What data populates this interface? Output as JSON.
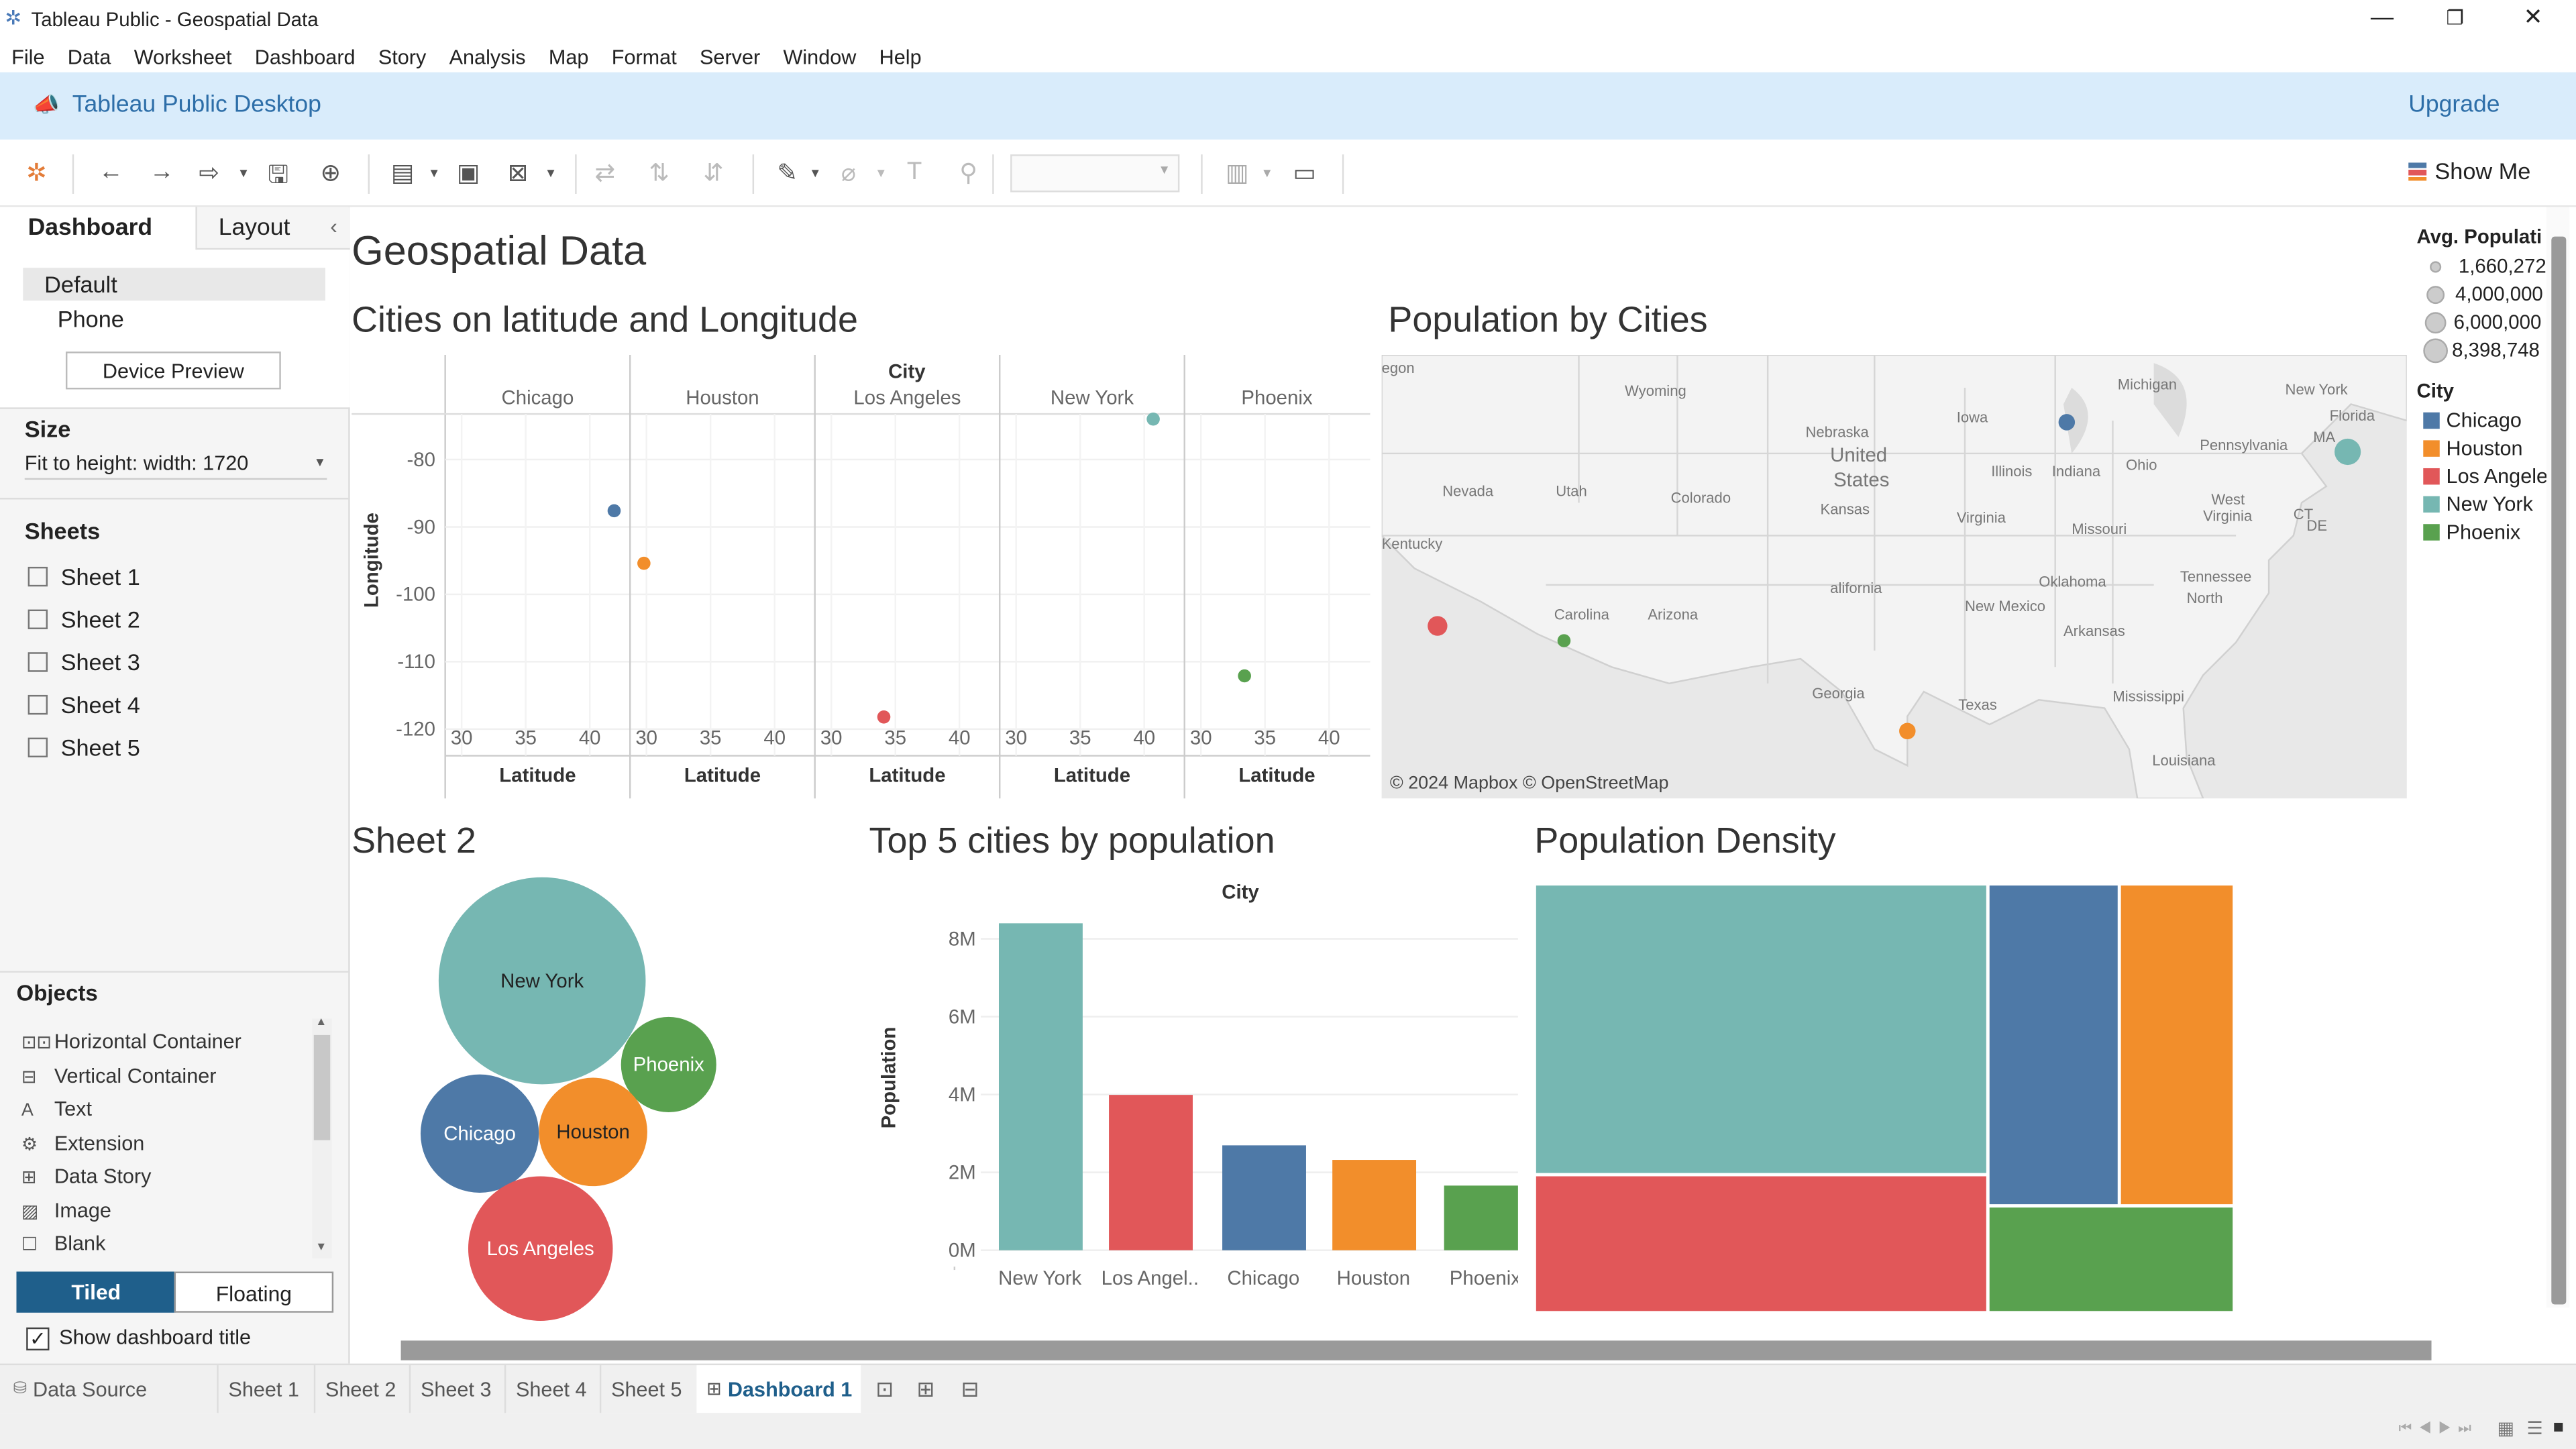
{
  "window": {
    "title": "Tableau Public - Geospatial Data"
  },
  "menu": [
    "File",
    "Data",
    "Worksheet",
    "Dashboard",
    "Story",
    "Analysis",
    "Map",
    "Format",
    "Server",
    "Window",
    "Help"
  ],
  "banner": {
    "product": "Tableau Public Desktop",
    "upgrade": "Upgrade"
  },
  "toolbar": {
    "show_me": "Show Me"
  },
  "left": {
    "tab_dashboard": "Dashboard",
    "tab_layout": "Layout",
    "device_default": "Default",
    "device_phone": "Phone",
    "device_preview": "Device Preview",
    "size_label": "Size",
    "size_value": "Fit to height: width: 1720",
    "sheets_label": "Sheets",
    "sheets": [
      "Sheet 1",
      "Sheet 2",
      "Sheet 3",
      "Sheet 4",
      "Sheet 5"
    ],
    "objects_label": "Objects",
    "objects": [
      "Horizontal Container",
      "Vertical Container",
      "Text",
      "Extension",
      "Data Story",
      "Image",
      "Blank"
    ],
    "tiled": "Tiled",
    "floating": "Floating",
    "show_title": "Show dashboard title"
  },
  "dashboard": {
    "title": "Geospatial Data",
    "scatter": {
      "title": "Cities on latitude and Longitude",
      "header": "City",
      "ylabel": "Longitude",
      "xlabel": "Latitude"
    },
    "map": {
      "title": "Population by Cities",
      "attribution": "© 2024 Mapbox © OpenStreetMap",
      "labels": [
        "egon",
        "Wyoming",
        "Nebraska",
        "United",
        "States",
        "Iowa",
        "Michigan",
        "New York",
        "Nevada",
        "Utah",
        "Colorado",
        "Kansas",
        "Illinois",
        "Indiana",
        "Ohio",
        "Pennsylvania",
        "West",
        "Virginia",
        "Virginia",
        "Missouri",
        "Kentucky",
        "alifornia",
        "Oklahoma",
        "Tennessee",
        "North",
        "Carolina",
        "Arizona",
        "New Mexico",
        "Arkansas",
        "Mississippi",
        "Georgia",
        "Texas",
        "Louisiana",
        "Florida",
        "MA",
        "CT",
        "DE"
      ]
    },
    "bubbles": {
      "title": "Sheet 2"
    },
    "bars": {
      "title": "Top 5 cities by population",
      "header": "City",
      "ylabel": "Population"
    },
    "treemap": {
      "title": "Population Density"
    }
  },
  "legend": {
    "size_title": "Avg. Populati",
    "sizes": [
      "1,660,272",
      "4,000,000",
      "6,000,000",
      "8,398,748"
    ],
    "color_title": "City",
    "cities": [
      "Chicago",
      "Houston",
      "Los Angele",
      "New York",
      "Phoenix"
    ],
    "colors": [
      "#4e79a7",
      "#f28e2b",
      "#e15759",
      "#76b7b2",
      "#59a14f"
    ]
  },
  "tabs": {
    "data_source": "Data Source",
    "sheets": [
      "Sheet 1",
      "Sheet 2",
      "Sheet 3",
      "Sheet 4",
      "Sheet 5"
    ],
    "dashboard": "Dashboard 1"
  },
  "chart_data": [
    {
      "type": "scatter",
      "title": "Cities on latitude and Longitude",
      "xlabel": "Latitude",
      "ylabel": "Longitude",
      "facets": [
        "Chicago",
        "Houston",
        "Los Angeles",
        "New York",
        "Phoenix"
      ],
      "x_ticks": [
        30,
        35,
        40
      ],
      "y_ticks": [
        -80,
        -90,
        -100,
        -110,
        -120
      ],
      "xlim": [
        28,
        45
      ],
      "ylim": [
        -122,
        -73
      ],
      "points": [
        {
          "facet": "Chicago",
          "x": 41.9,
          "y": -87.6
        },
        {
          "facet": "Houston",
          "x": 29.8,
          "y": -95.4
        },
        {
          "facet": "Los Angeles",
          "x": 34.1,
          "y": -118.2
        },
        {
          "facet": "New York",
          "x": 40.7,
          "y": -74.0
        },
        {
          "facet": "Phoenix",
          "x": 33.4,
          "y": -112.1
        }
      ]
    },
    {
      "type": "bubble",
      "title": "Sheet 2",
      "labels": [
        "New York",
        "Phoenix",
        "Chicago",
        "Houston",
        "Los Angeles"
      ],
      "values": [
        8398748,
        1660272,
        2693976,
        2320268,
        3990456
      ]
    },
    {
      "type": "bar",
      "title": "Top 5 cities by population",
      "header": "City",
      "ylabel": "Population",
      "categories": [
        "New York",
        "Los Angel..",
        "Chicago",
        "Houston",
        "Phoenix"
      ],
      "values": [
        8398748,
        3990456,
        2693976,
        2320268,
        1660272
      ],
      "y_ticks": [
        "8M",
        "6M",
        "4M",
        "2M",
        "0M"
      ],
      "ylim": [
        0,
        9000000
      ]
    },
    {
      "type": "treemap",
      "title": "Population Density",
      "labels": [
        "New York",
        "Los Angeles",
        "Chicago",
        "Houston",
        "Phoenix"
      ],
      "values": [
        8398748,
        3990456,
        2693976,
        2320268,
        1660272
      ]
    }
  ]
}
